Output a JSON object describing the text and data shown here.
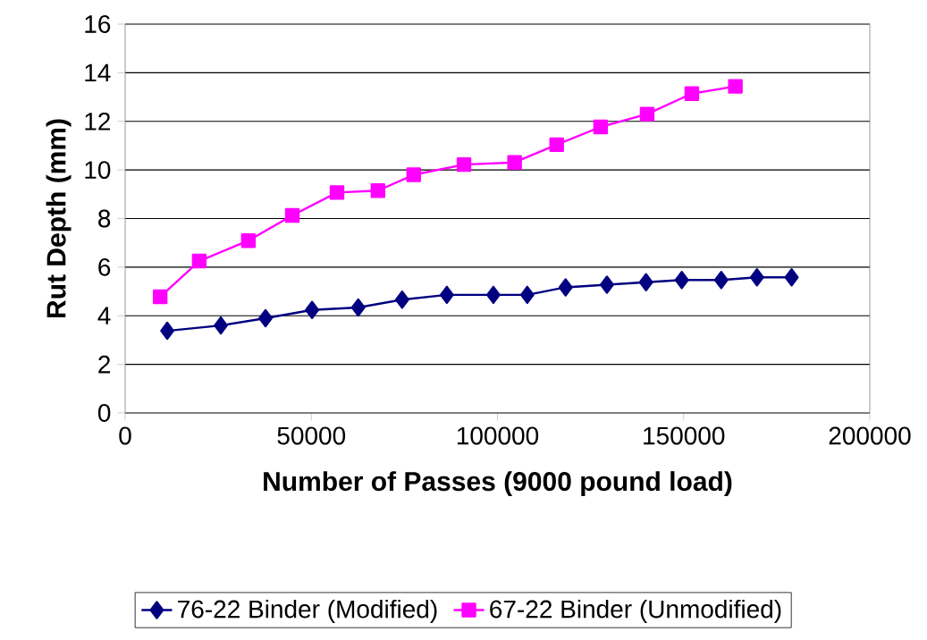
{
  "chart_data": {
    "type": "line",
    "xlabel": "Number of Passes (9000 pound load)",
    "ylabel": "Rut Depth (mm)",
    "xlim": [
      0,
      200000
    ],
    "xticks": [
      0,
      50000,
      100000,
      150000,
      200000
    ],
    "ylim": [
      0,
      16
    ],
    "yticks": [
      0,
      2,
      4,
      6,
      8,
      10,
      12,
      14,
      16
    ],
    "grid": "y",
    "legend": "bottom",
    "line_style": "solid",
    "series": [
      {
        "name": "76-22 Binder (Modified)",
        "color": "#000080",
        "marker": "diamond",
        "x": [
          11300,
          25700,
          37700,
          50200,
          62600,
          74400,
          86400,
          98900,
          108000,
          118300,
          129400,
          139900,
          149500,
          160100,
          169700,
          179000
        ],
        "values": [
          3.38,
          3.6,
          3.9,
          4.24,
          4.34,
          4.66,
          4.86,
          4.86,
          4.86,
          5.17,
          5.28,
          5.38,
          5.47,
          5.47,
          5.58,
          5.58
        ]
      },
      {
        "name": "67-22 Binder (Unmodified)",
        "color": "#ff00ff",
        "marker": "square",
        "x": [
          9400,
          19900,
          33100,
          44900,
          56900,
          67900,
          77500,
          91000,
          104600,
          115900,
          127700,
          140200,
          152200,
          163900
        ],
        "values": [
          4.78,
          6.25,
          7.09,
          8.13,
          9.07,
          9.15,
          9.8,
          10.22,
          10.31,
          11.04,
          11.77,
          12.3,
          13.14,
          13.44
        ]
      }
    ]
  }
}
